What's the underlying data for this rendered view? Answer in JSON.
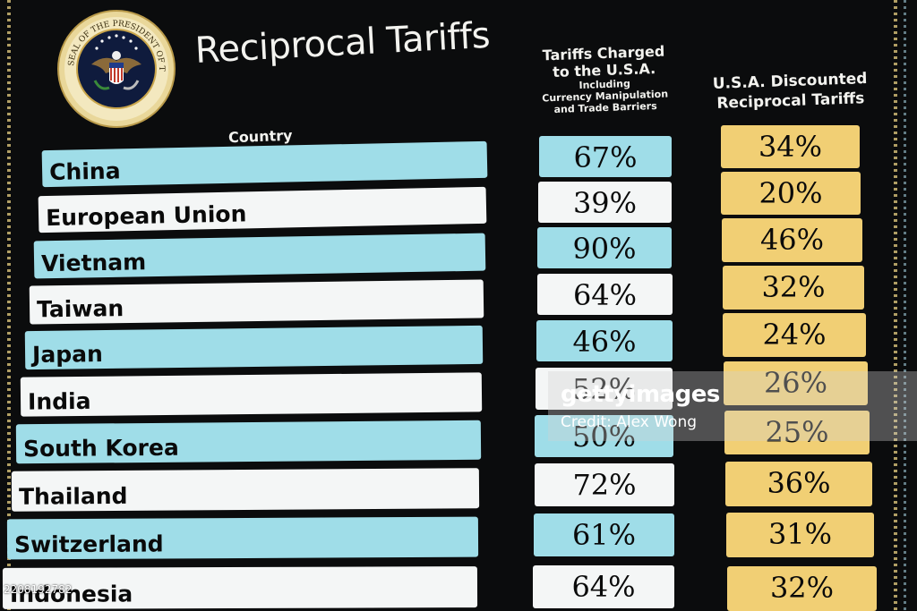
{
  "board": {
    "title": "Reciprocal Tariffs",
    "seal_text": "SEAL OF THE PRESIDENT OF THE UNITED STATES",
    "country_header": "Country",
    "col1_header": {
      "line1": "Tariffs Charged",
      "line2": "to the U.S.A.",
      "line3": "Including",
      "line4": "Currency Manipulation",
      "line5": "and Trade Barriers"
    },
    "col2_header": {
      "line1": "U.S.A. Discounted",
      "line2": "Reciprocal Tariffs"
    },
    "rows": [
      {
        "country": "China",
        "charged": "67%",
        "reciprocal": "34%"
      },
      {
        "country": "European Union",
        "charged": "39%",
        "reciprocal": "20%"
      },
      {
        "country": "Vietnam",
        "charged": "90%",
        "reciprocal": "46%"
      },
      {
        "country": "Taiwan",
        "charged": "64%",
        "reciprocal": "32%"
      },
      {
        "country": "Japan",
        "charged": "46%",
        "reciprocal": "24%"
      },
      {
        "country": "India",
        "charged": "52%",
        "reciprocal": "26%"
      },
      {
        "country": "South Korea",
        "charged": "50%",
        "reciprocal": "25%"
      },
      {
        "country": "Thailand",
        "charged": "72%",
        "reciprocal": "36%"
      },
      {
        "country": "Switzerland",
        "charged": "61%",
        "reciprocal": "31%"
      },
      {
        "country": "Indonesia",
        "charged": "64%",
        "reciprocal": "32%"
      }
    ]
  },
  "watermark": {
    "brand": "gettyimages",
    "credit": "Credit: Alex Wong"
  },
  "image_id": "2208192782",
  "colors": {
    "cyan": "#9fdde8",
    "white": "#f4f6f6",
    "gold": "#f1cf74",
    "background": "#0b0c0d"
  }
}
